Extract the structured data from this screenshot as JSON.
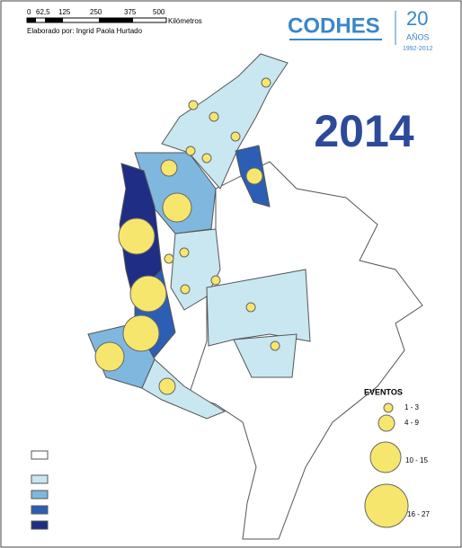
{
  "scale": {
    "labels": [
      "0",
      "62,5",
      "125",
      "250",
      "375",
      "500"
    ],
    "unit": "Kilómetros"
  },
  "credit": "Elaborado por: Ingrid Paola Hurtado",
  "logo": {
    "name": "CODHES",
    "anniversary": "20",
    "years_word": "AÑOS",
    "period": "1992-2012"
  },
  "year": "2014",
  "legend": {
    "title": "EVENTOS",
    "classes": [
      "1 - 3",
      "4 - 9",
      "10 - 15",
      "16 - 27"
    ]
  }
}
